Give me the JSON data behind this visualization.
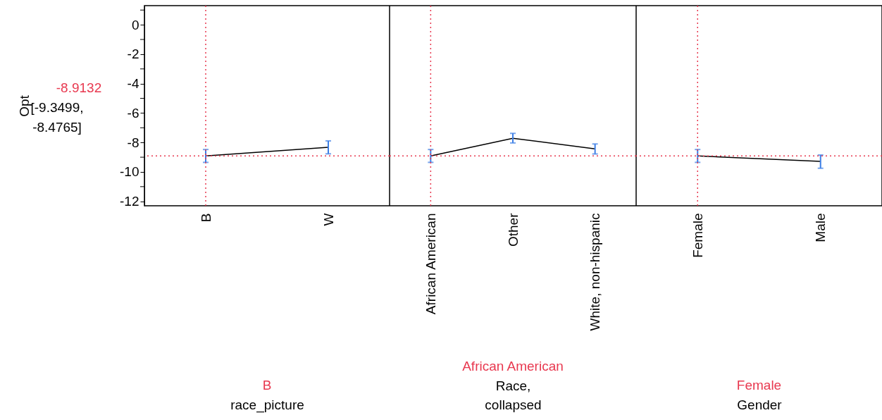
{
  "chart_data": [
    {
      "type": "line",
      "ylabel": "Opt",
      "xlabel": "race_picture",
      "categories": [
        "B",
        "W"
      ],
      "ylim": [
        -12.3,
        1.3
      ],
      "yticks": [
        {
          "value": 1,
          "label": null
        },
        0,
        {
          "value": -1,
          "label": null
        },
        -2,
        {
          "value": -3,
          "label": null
        },
        -4,
        {
          "value": -5,
          "label": null
        },
        -6,
        {
          "value": -7,
          "label": null
        },
        -8,
        {
          "value": -9,
          "label": null
        },
        -10,
        {
          "value": -11,
          "label": null
        },
        -12
      ],
      "series": [
        {
          "color": "#000000",
          "values": [
            -8.9132,
            -8.32
          ],
          "errors": [
            [
              -9.3499,
              -8.4765
            ],
            [
              -8.77,
              -7.89
            ]
          ]
        }
      ],
      "ref_lines": [
        {
          "axis": "x",
          "value": "B",
          "label": "B",
          "color": "#e8384f",
          "line_style": "dotted"
        },
        {
          "axis": "y",
          "value": -8.9132,
          "label": "-8.9132",
          "color": "#e8384f",
          "line_style": "dotted"
        }
      ],
      "annotations": [
        "[-9.3499,\n-8.4765]"
      ],
      "line_style": "solid",
      "marker": "none"
    },
    {
      "type": "line",
      "xlabel": "Race,\ncollapsed",
      "categories": [
        "African American",
        "Other",
        "White, non-hispanic"
      ],
      "ylim": [
        -12.3,
        1.3
      ],
      "tick_labels": "x",
      "series": [
        {
          "color": "#000000",
          "values": [
            -8.9132,
            -7.71,
            -8.43
          ],
          "errors": [
            [
              -9.3499,
              -8.4765
            ],
            [
              -8.03,
              -7.38
            ],
            [
              -8.78,
              -8.1
            ]
          ]
        }
      ],
      "ref_lines": [
        {
          "axis": "x",
          "value": "African American",
          "label": "African American",
          "color": "#e8384f",
          "line_style": "dotted"
        },
        {
          "axis": "y",
          "value": -8.9132,
          "color": "#e8384f",
          "line_style": "dotted"
        }
      ],
      "line_style": "solid",
      "marker": "none"
    },
    {
      "type": "line",
      "xlabel": "Gender",
      "categories": [
        "Female",
        "Male"
      ],
      "ylim": [
        -12.3,
        1.3
      ],
      "tick_labels": "x",
      "series": [
        {
          "color": "#000000",
          "values": [
            -8.9132,
            -9.28
          ],
          "errors": [
            [
              -9.3499,
              -8.4765
            ],
            [
              -9.75,
              -8.85
            ]
          ]
        }
      ],
      "ref_lines": [
        {
          "axis": "x",
          "value": "Female",
          "label": "Female",
          "color": "#e8384f",
          "line_style": "dotted"
        },
        {
          "axis": "y",
          "value": -8.9132,
          "color": "#e8384f",
          "line_style": "dotted"
        }
      ],
      "line_style": "solid",
      "marker": "none"
    }
  ]
}
